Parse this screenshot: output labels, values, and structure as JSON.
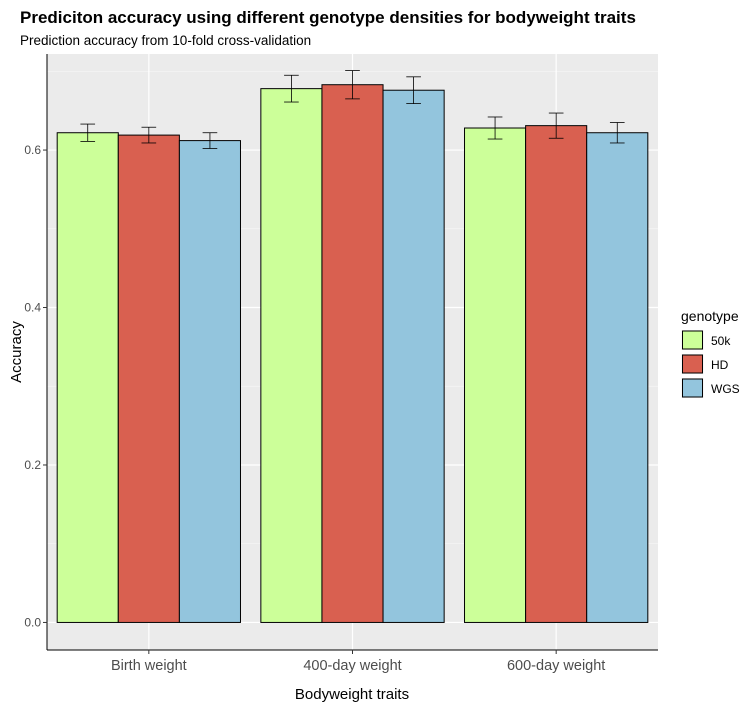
{
  "chart_data": {
    "type": "bar",
    "title": "Prediciton accuracy using different genotype densities for bodyweight traits",
    "subtitle": "Prediction accuracy from 10-fold cross-validation",
    "xlabel": "Bodyweight traits",
    "ylabel": "Accuracy",
    "ylim": [
      -0.035,
      0.722
    ],
    "yticks": [
      "0.0",
      "0.2",
      "0.4",
      "0.6"
    ],
    "ytick_values": [
      0.0,
      0.2,
      0.4,
      0.6
    ],
    "grid": true,
    "legend_placement": "right",
    "legend_title": "genotype",
    "categories": [
      "Birth weight",
      "400-day weight",
      "600-day weight"
    ],
    "series": [
      {
        "name": "50k",
        "color": "#CCFF99",
        "values": [
          0.622,
          0.678,
          0.628
        ],
        "errors": [
          0.011,
          0.017,
          0.014
        ]
      },
      {
        "name": "HD",
        "color": "#D96050",
        "values": [
          0.619,
          0.683,
          0.631
        ],
        "errors": [
          0.01,
          0.018,
          0.016
        ]
      },
      {
        "name": "WGS",
        "color": "#93C5DD",
        "values": [
          0.612,
          0.676,
          0.622
        ],
        "errors": [
          0.01,
          0.017,
          0.013
        ]
      }
    ]
  }
}
